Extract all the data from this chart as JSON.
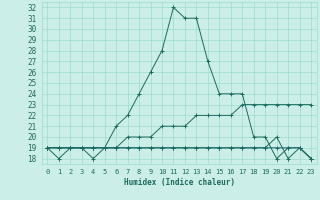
{
  "title": "",
  "xlabel": "Humidex (Indice chaleur)",
  "background_color": "#cceee8",
  "grid_color": "#99ddcc",
  "line_color": "#1a6b5e",
  "xlim": [
    -0.5,
    23.5
  ],
  "ylim": [
    17.5,
    32.5
  ],
  "yticks": [
    18,
    19,
    20,
    21,
    22,
    23,
    24,
    25,
    26,
    27,
    28,
    29,
    30,
    31,
    32
  ],
  "xticks": [
    0,
    1,
    2,
    3,
    4,
    5,
    6,
    7,
    8,
    9,
    10,
    11,
    12,
    13,
    14,
    15,
    16,
    17,
    18,
    19,
    20,
    21,
    22,
    23
  ],
  "lines": [
    {
      "x": [
        0,
        1,
        2,
        3,
        4,
        5,
        6,
        7,
        8,
        9,
        10,
        11,
        12,
        13,
        14,
        15,
        16,
        17,
        18,
        19,
        20,
        21,
        22,
        23
      ],
      "y": [
        19,
        18,
        19,
        19,
        18,
        19,
        21,
        22,
        24,
        26,
        28,
        32,
        31,
        31,
        27,
        24,
        24,
        24,
        20,
        20,
        18,
        19,
        19,
        18
      ]
    },
    {
      "x": [
        0,
        1,
        2,
        3,
        4,
        5,
        6,
        7,
        8,
        9,
        10,
        11,
        12,
        13,
        14,
        15,
        16,
        17,
        18,
        19,
        20,
        21,
        22,
        23
      ],
      "y": [
        19,
        19,
        19,
        19,
        19,
        19,
        19,
        20,
        20,
        20,
        21,
        21,
        21,
        22,
        22,
        22,
        22,
        23,
        23,
        23,
        23,
        23,
        23,
        23
      ]
    },
    {
      "x": [
        0,
        1,
        2,
        3,
        4,
        5,
        6,
        7,
        8,
        9,
        10,
        11,
        12,
        13,
        14,
        15,
        16,
        17,
        18,
        19,
        20,
        21,
        22,
        23
      ],
      "y": [
        19,
        19,
        19,
        19,
        19,
        19,
        19,
        19,
        19,
        19,
        19,
        19,
        19,
        19,
        19,
        19,
        19,
        19,
        19,
        19,
        20,
        18,
        19,
        18
      ]
    },
    {
      "x": [
        0,
        1,
        2,
        3,
        4,
        5,
        6,
        7,
        8,
        9,
        10,
        11,
        12,
        13,
        14,
        15,
        16,
        17,
        18,
        19,
        20,
        21,
        22,
        23
      ],
      "y": [
        19,
        19,
        19,
        19,
        19,
        19,
        19,
        19,
        19,
        19,
        19,
        19,
        19,
        19,
        19,
        19,
        19,
        19,
        19,
        19,
        19,
        19,
        19,
        18
      ]
    }
  ]
}
